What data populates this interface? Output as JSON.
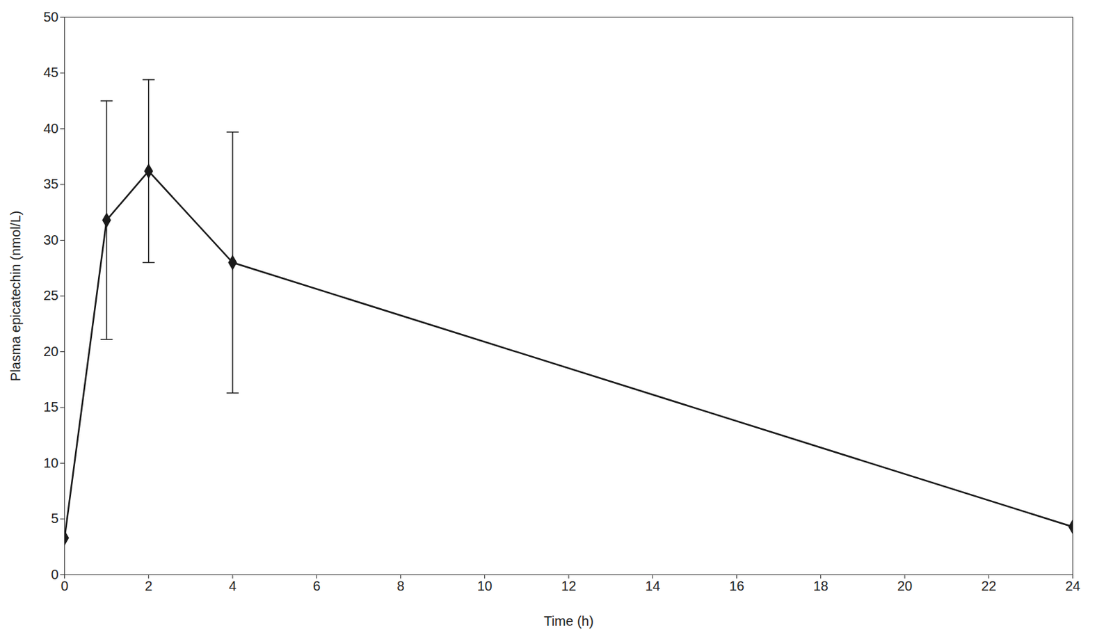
{
  "chart_data": {
    "type": "line",
    "x_label": "Time (h)",
    "y_label": "Plasma epicatechin (nmol/L)",
    "x": [
      0,
      1,
      2,
      4,
      24
    ],
    "values": [
      3.3,
      31.8,
      36.2,
      28.0,
      4.3
    ],
    "error": [
      null,
      10.7,
      8.2,
      11.7,
      null
    ],
    "color": "#1a1a1a",
    "marker": "diamond",
    "line_style": "solid",
    "xlim": [
      0,
      24
    ],
    "xticks": [
      0,
      2,
      4,
      6,
      8,
      10,
      12,
      14,
      16,
      18,
      20,
      22,
      24
    ],
    "ylim": [
      0,
      50
    ],
    "yticks": [
      0,
      5,
      10,
      15,
      20,
      25,
      30,
      35,
      40,
      45,
      50
    ],
    "grid": false
  }
}
